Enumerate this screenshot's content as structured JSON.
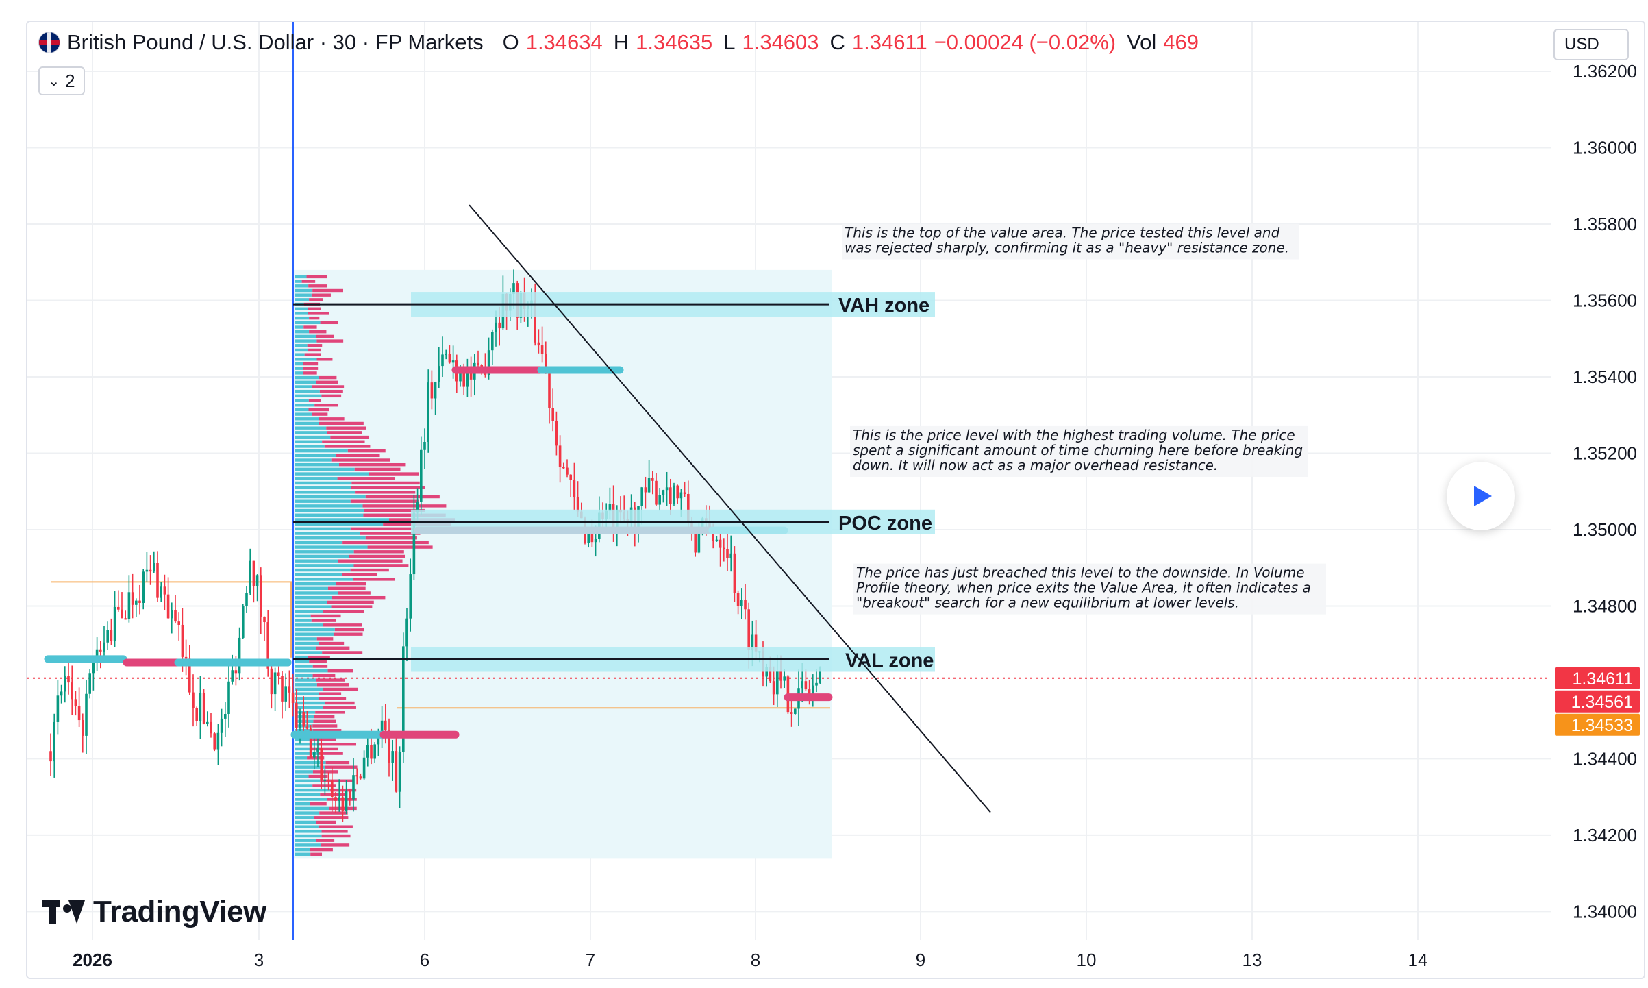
{
  "header": {
    "symbol_title": "British Pound / U.S. Dollar · 30 · FP Markets",
    "ohlc": [
      {
        "label": "O",
        "value": "1.34634"
      },
      {
        "label": "H",
        "value": "1.34635"
      },
      {
        "label": "L",
        "value": "1.34603"
      },
      {
        "label": "C",
        "value": "1.34611"
      }
    ],
    "change": "−0.00024 (−0.02%)",
    "volume_label": "Vol",
    "volume_value": "469",
    "collapse_count": "2",
    "currency": "USD"
  },
  "colors": {
    "up": "#089981",
    "down": "#f23645",
    "value_area": "#e9f7fa",
    "zone": "#b2ebf2",
    "profile_up": "#4fc3d4",
    "profile_down": "#e0457a",
    "last_price_bg": "#f23645",
    "other_price_bg": "#f7931a"
  },
  "annotations": [
    {
      "id": "vah-note",
      "lines": [
        "This is the top of the value area. The price tested this level and",
        "was rejected sharply, confirming it as a \"heavy\" resistance zone."
      ]
    },
    {
      "id": "poc-note",
      "lines": [
        "This is the price level with the highest trading volume. The price",
        "spent a significant amount of time churning here before breaking",
        "down. It will now act as a major overhead resistance."
      ]
    },
    {
      "id": "val-note",
      "lines": [
        "The price has just breached this level to the downside. In Volume",
        "Profile theory, when price exits the Value Area, it often indicates a",
        "\"breakout\" search for a new equilibrium at lower levels."
      ]
    }
  ],
  "zones": [
    {
      "label": "VAH zone",
      "price": 1.3559
    },
    {
      "label": "POC zone",
      "price": 1.3502
    },
    {
      "label": "VAL zone",
      "price": 1.3466
    }
  ],
  "price_badges": [
    {
      "label": "1.34611",
      "color": "#f23645"
    },
    {
      "label": "1.34561",
      "color": "#f23645"
    },
    {
      "label": "1.34533",
      "color": "#f7931a"
    }
  ],
  "logo_text": "TradingView",
  "chart_data": {
    "type": "candlestick",
    "title": "British Pound / U.S. Dollar · 30 · FP Markets",
    "y_ticks": [
      "1.36200",
      "1.36000",
      "1.35800",
      "1.35600",
      "1.35400",
      "1.35200",
      "1.35000",
      "1.34800",
      "1.34400",
      "1.34200",
      "1.34000"
    ],
    "x_ticks": [
      "2026",
      "3",
      "6",
      "7",
      "8",
      "9",
      "10",
      "13",
      "14"
    ],
    "ylim": [
      1.3392,
      1.3627
    ],
    "grid": true,
    "last_close": 1.34611,
    "value_area": {
      "high": 1.3568,
      "low": 1.3414
    },
    "trendline": {
      "from": {
        "x": "6",
        "price": 1.3585
      },
      "to": {
        "x": "9",
        "price": 1.3426
      }
    }
  }
}
